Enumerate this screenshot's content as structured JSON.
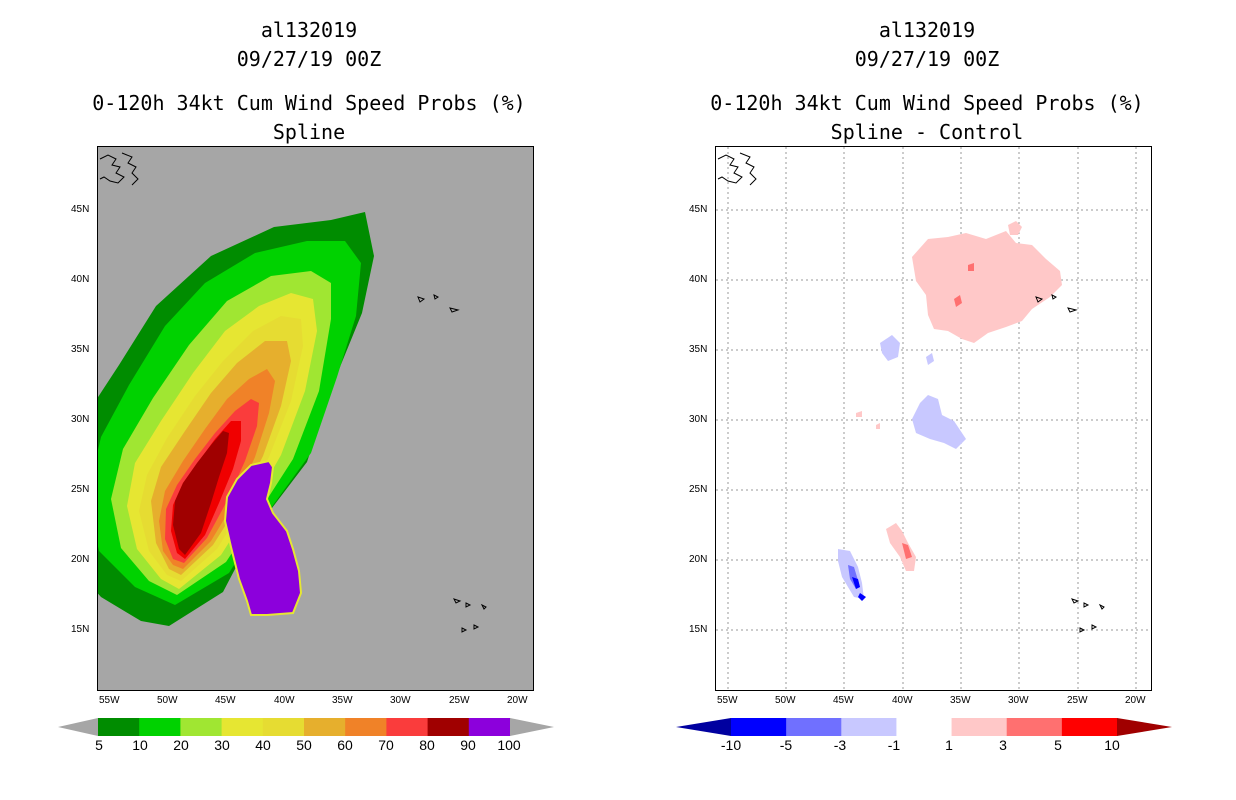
{
  "chart_data": [
    {
      "type": "heatmap",
      "storm_id": "al132019",
      "datetime": "09/27/19 00Z",
      "title": "0-120h 34kt Cum Wind Speed Probs (%)",
      "subtitle": "Spline",
      "lat_ticks": [
        "45N",
        "40N",
        "35N",
        "30N",
        "25N",
        "20N",
        "15N"
      ],
      "lon_ticks": [
        "55W",
        "50W",
        "45W",
        "40W",
        "35W",
        "30W",
        "25W",
        "20W"
      ],
      "grid": false,
      "background_color": "#a6a6a6",
      "colorbar": {
        "labels": [
          "5",
          "10",
          "20",
          "30",
          "40",
          "50",
          "60",
          "70",
          "80",
          "90",
          "100"
        ],
        "colors": [
          "#008c00",
          "#00d200",
          "#a0e632",
          "#e6e632",
          "#e6dc32",
          "#e6af2d",
          "#f08228",
          "#fa3c3c",
          "#a00000",
          "#8c00dc"
        ]
      }
    },
    {
      "type": "heatmap",
      "storm_id": "al132019",
      "datetime": "09/27/19 00Z",
      "title": "0-120h 34kt Cum Wind Speed Probs (%)",
      "subtitle": "Spline - Control",
      "lat_ticks": [
        "45N",
        "40N",
        "35N",
        "30N",
        "25N",
        "20N",
        "15N"
      ],
      "lon_ticks": [
        "55W",
        "50W",
        "45W",
        "40W",
        "35W",
        "30W",
        "25W",
        "20W"
      ],
      "grid": true,
      "background_color": "#ffffff",
      "colorbar": {
        "labels": [
          "-10",
          "-5",
          "-3",
          "-1",
          "1",
          "3",
          "5",
          "10"
        ],
        "colors": [
          "#0000a0",
          "#0000ff",
          "#7070ff",
          "#c8c8ff",
          "#ffffff",
          "#ffc8c8",
          "#ff7070",
          "#ff0000",
          "#a00000"
        ]
      }
    }
  ]
}
